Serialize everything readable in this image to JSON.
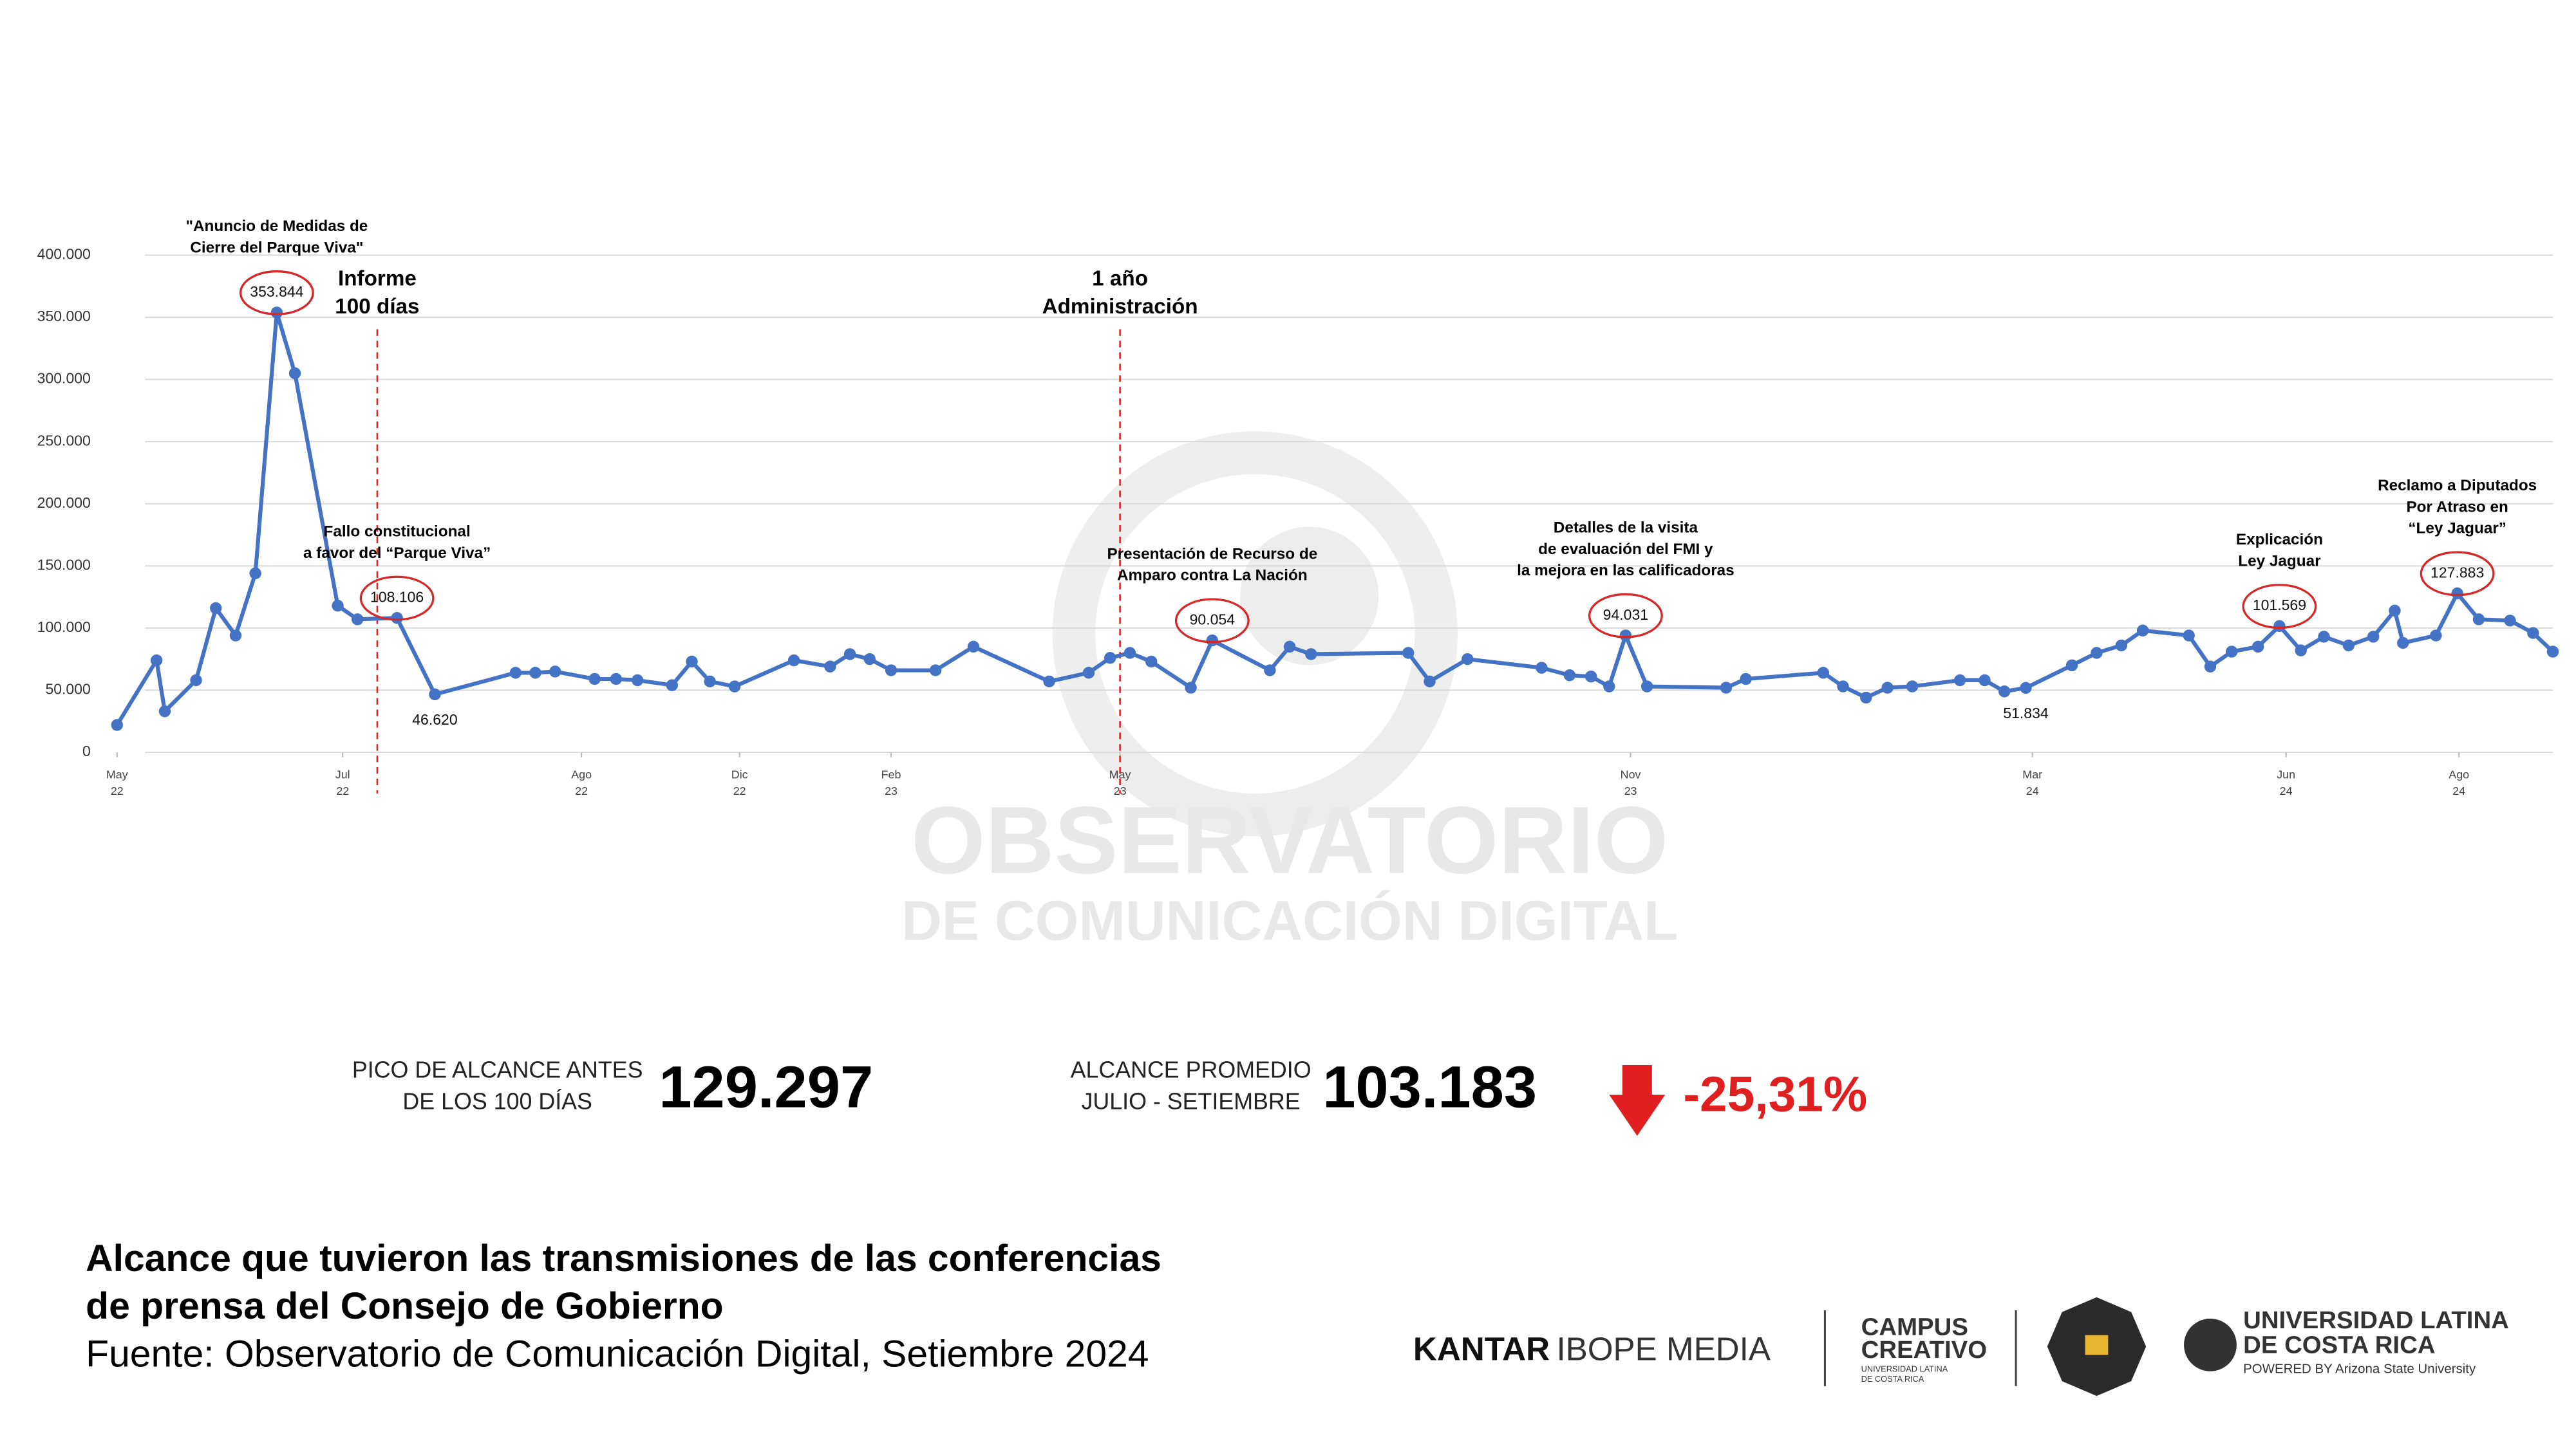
{
  "chart_data": {
    "type": "line",
    "x": [
      71,
      95,
      100,
      119,
      131,
      143,
      155,
      168,
      179,
      205,
      217,
      241,
      264,
      313,
      325,
      337,
      361,
      374,
      387,
      408,
      420,
      431,
      446,
      482,
      504,
      516,
      528,
      541,
      568,
      591,
      637,
      661,
      674,
      686,
      699,
      723,
      736,
      771,
      783,
      796,
      855,
      868,
      891,
      936,
      953,
      966,
      977,
      987,
      1000,
      1048,
      1060,
      1107,
      1119,
      1133,
      1146,
      1161,
      1190,
      1205,
      1217,
      1230,
      1258,
      1273,
      1288,
      1301,
      1329,
      1342,
      1355,
      1371,
      1384,
      1397,
      1411,
      1426,
      1441,
      1454,
      1459,
      1479,
      1492,
      1505,
      1524,
      1538,
      1550
    ],
    "values": [
      22000,
      74000,
      33000,
      58000,
      116000,
      94000,
      144000,
      353844,
      305000,
      118000,
      107000,
      108106,
      46620,
      64000,
      64000,
      65000,
      59000,
      59000,
      58000,
      54000,
      73000,
      57000,
      53000,
      74000,
      69000,
      79000,
      75000,
      66000,
      66000,
      85000,
      57000,
      64000,
      76000,
      80000,
      73000,
      52000,
      90054,
      66000,
      85000,
      79000,
      80000,
      57000,
      75000,
      68000,
      62000,
      61000,
      53000,
      94031,
      53000,
      52000,
      59000,
      64000,
      53000,
      44000,
      52000,
      53000,
      58000,
      58000,
      49000,
      51834,
      70000,
      80000,
      86000,
      98000,
      94000,
      69000,
      81000,
      85000,
      101569,
      82000,
      93000,
      86000,
      93000,
      114000,
      88000,
      94000,
      127883,
      107000,
      106000,
      96000,
      81000
    ],
    "color": "#4472c4",
    "value_labels": {
      "7": {
        "text": "353.844",
        "circled": true
      },
      "11": {
        "text": "108.106",
        "circled": true
      },
      "12": {
        "text": "46.620",
        "circled": false
      },
      "36": {
        "text": "90.054",
        "circled": true
      },
      "47": {
        "text": "94.031",
        "circled": true
      },
      "59": {
        "text": "51.834",
        "circled": false
      },
      "68": {
        "text": "101.569",
        "circled": true
      },
      "76": {
        "text": "127.883",
        "circled": true
      }
    },
    "circle_color": "#d62828",
    "annotations": {
      "7": [
        "\"Anuncio de Medidas de",
        "Cierre del Parque Viva\""
      ],
      "11": [
        "Fallo constitucional",
        "a favor del “Parque Viva”"
      ],
      "36": [
        "Presentación de Recurso de",
        "Amparo contra La Nación"
      ],
      "47": [
        "Detalles de la visita",
        "de evaluación del FMI y",
        "la mejora en las calificadoras"
      ],
      "68": [
        "Explicación",
        "Ley Jaguar"
      ],
      "76": [
        "Reclamo a Diputados",
        "Por Atraso en",
        "“Ley Jaguar”"
      ]
    },
    "vlines": [
      {
        "x": 229,
        "label": [
          "Informe",
          "100 días"
        ]
      },
      {
        "x": 680,
        "label": [
          "1 año",
          "Administración"
        ]
      }
    ],
    "xlim": [
      71,
      1550
    ],
    "xticks": [
      {
        "value": 71,
        "label": "May",
        "year": "22"
      },
      {
        "value": 208,
        "label": "Jul",
        "year": "22"
      },
      {
        "value": 353,
        "label": "Ago",
        "year": "22"
      },
      {
        "value": 449,
        "label": "Dic",
        "year": "22"
      },
      {
        "value": 541,
        "label": "Feb",
        "year": "23"
      },
      {
        "value": 680,
        "label": "May",
        "year": "23"
      },
      {
        "value": 990,
        "label": "Nov",
        "year": "23"
      },
      {
        "value": 1234,
        "label": "Mar",
        "year": "24"
      },
      {
        "value": 1388,
        "label": "Jun",
        "year": "24"
      },
      {
        "value": 1493,
        "label": "Ago",
        "year": "24"
      }
    ],
    "ylim": [
      0,
      400000
    ],
    "yticks": [
      0,
      {
        "value": 50000,
        "label": "50.000"
      },
      {
        "value": 100000,
        "label": "100.000"
      },
      {
        "value": 150000,
        "label": "150.000"
      },
      {
        "value": 200000,
        "label": "200.000"
      },
      {
        "value": 250000,
        "label": "250.000"
      },
      {
        "value": 300000,
        "label": "300.000"
      },
      {
        "value": 350000,
        "label": "350.000"
      },
      {
        "value": 400000,
        "label": "400.000"
      }
    ],
    "grid": true
  },
  "watermark": [
    "OBSERVATORIO",
    "DE COMUNICACIÓN DIGITAL"
  ],
  "stats": {
    "peak_label": [
      "PICO DE ALCANCE ANTES",
      "DE LOS 100 DÍAS"
    ],
    "peak_value": "129.297",
    "avg_label": [
      "ALCANCE PROMEDIO",
      "JULIO - SETIEMBRE"
    ],
    "avg_value": "103.183",
    "change": "-25,31%"
  },
  "footer": {
    "title": [
      "Alcance que tuvieron las transmisiones de las conferencias",
      "de prensa del Consejo de Gobierno"
    ],
    "source": "Fuente: Observatorio de Comunicación Digital, Setiembre 2024",
    "kantar": "KANTAR",
    "ibope": "IBOPE MEDIA",
    "campus": [
      "CAMPUS",
      "CREATIVO"
    ],
    "campus_sub": [
      "UNIVERSIDAD LATINA",
      "DE COSTA RICA"
    ],
    "ulatina": [
      "UNIVERSIDAD LATINA",
      "DE COSTA RICA"
    ],
    "powered": "POWERED BY Arizona State University"
  }
}
